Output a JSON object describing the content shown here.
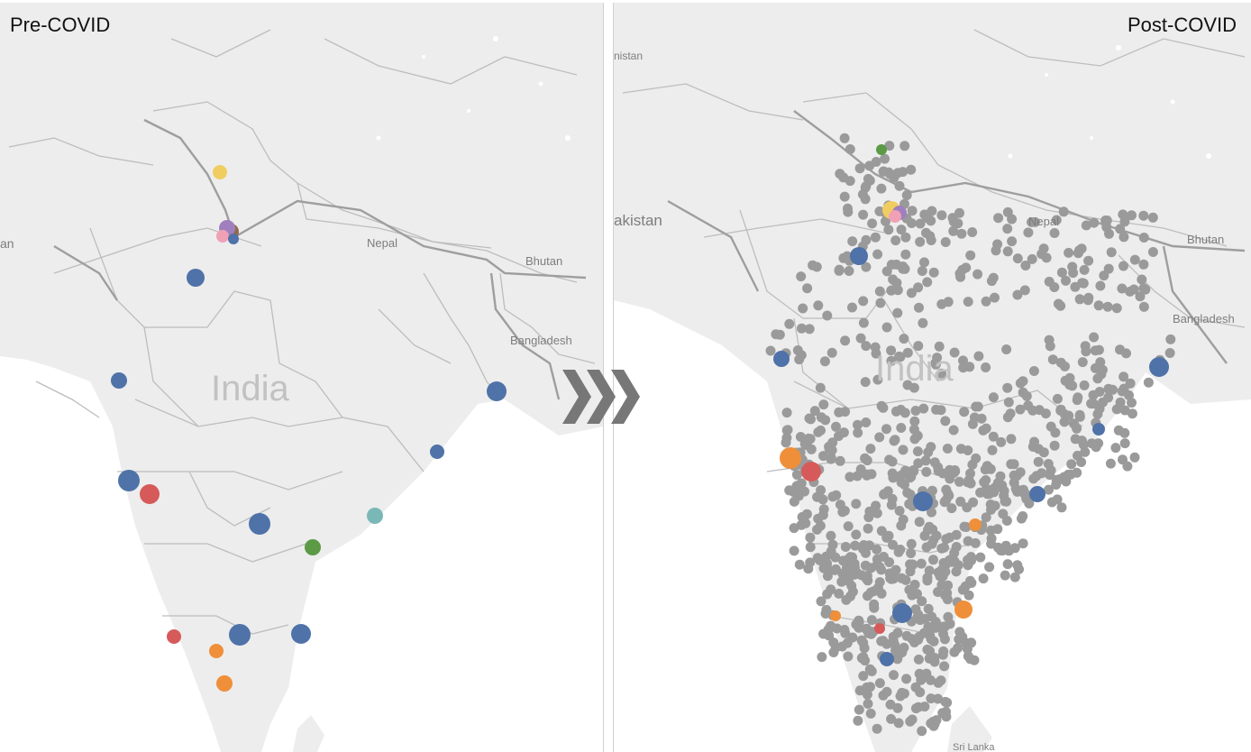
{
  "panels": {
    "pre": {
      "label": "Pre-COVID",
      "places": {
        "country": "India",
        "nepal": "Nepal",
        "bhutan": "Bhutan",
        "bangladesh": "Bangladesh",
        "edge": "an"
      }
    },
    "post": {
      "label": "Post-COVID",
      "places": {
        "country": "India",
        "nepal": "Nepal",
        "bhutan": "Bhutan",
        "bangladesh": "Bangladesh",
        "pakistan": "akistan",
        "edge_top": "nistan",
        "srilanka": "Sri Lanka"
      }
    }
  },
  "colors": {
    "land": "#ededed",
    "water": "#ffffff",
    "border": "#bdbdbd",
    "blue": "#4f72a8",
    "red": "#d65a5a",
    "orange": "#ef8f3a",
    "green": "#5c9a45",
    "teal": "#7ab8b8",
    "yellow": "#f0cd60",
    "purple": "#a07fbe",
    "pink": "#f0a1b5",
    "brown": "#8f6a4e",
    "gray": "#9a9a9a",
    "arrow": "#777777"
  },
  "icons": {
    "transition_arrow": "triple-chevron-right-icon"
  }
}
